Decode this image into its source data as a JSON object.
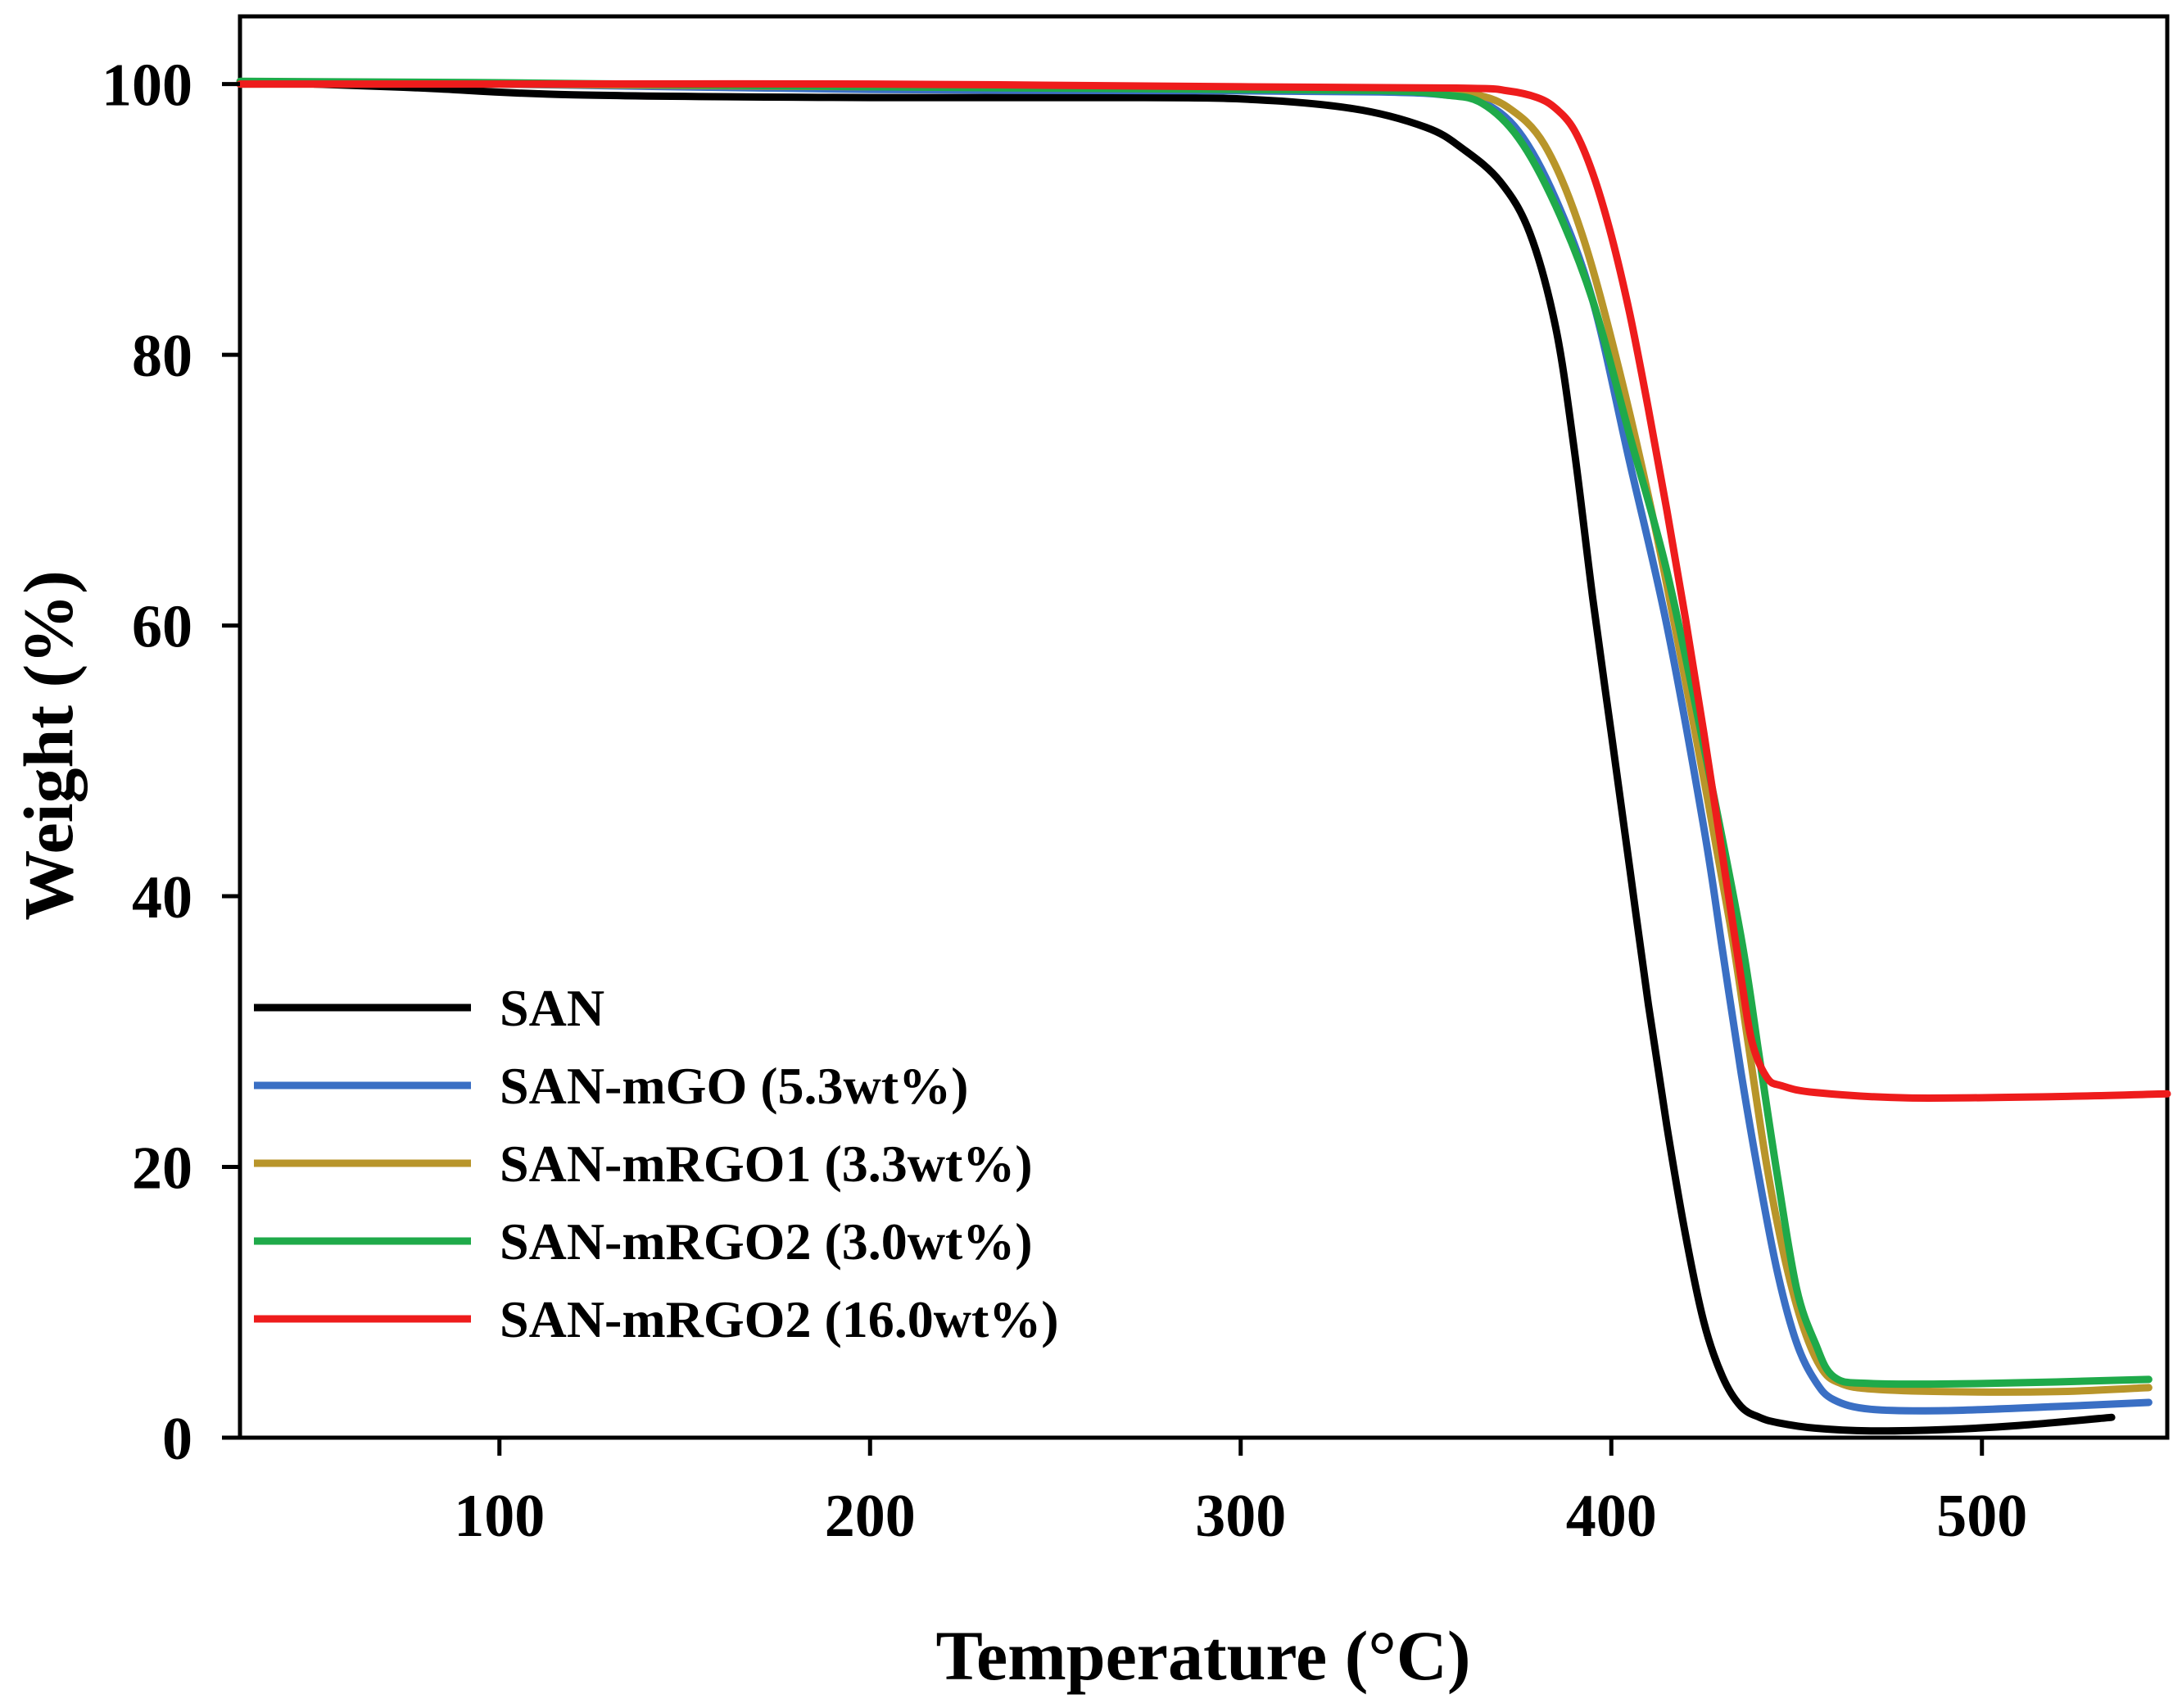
{
  "chart_data": {
    "type": "line",
    "title": "",
    "xlabel": "Temperature (°C)",
    "ylabel": "Weight  (%)",
    "xlim": [
      30,
      550
    ],
    "ylim": [
      0,
      105
    ],
    "xticks": [
      100,
      200,
      300,
      400,
      500
    ],
    "yticks": [
      0,
      20,
      40,
      60,
      80,
      100
    ],
    "grid": false,
    "legend_position": "bottom-left",
    "series": [
      {
        "name": "SAN",
        "color": "#000000",
        "x": [
          50,
          80,
          120,
          200,
          260,
          300,
          330,
          350,
          360,
          370,
          378,
          385,
          390,
          395,
          400,
          405,
          410,
          415,
          420,
          425,
          430,
          435,
          440,
          445,
          455,
          470,
          490,
          510,
          535
        ],
        "y": [
          100,
          99.7,
          99.2,
          99,
          99,
          98.9,
          98.2,
          96.8,
          95.2,
          92.8,
          89,
          82,
          73,
          62,
          52,
          42,
          32,
          23,
          15,
          8.5,
          4.5,
          2.3,
          1.5,
          1.1,
          0.7,
          0.5,
          0.6,
          0.9,
          1.5
        ]
      },
      {
        "name": "SAN-mGO  (5.3wt%)",
        "color": "#3a6fc4",
        "x": [
          30,
          100,
          200,
          300,
          340,
          355,
          365,
          375,
          385,
          395,
          405,
          415,
          425,
          430,
          435,
          440,
          445,
          450,
          455,
          460,
          470,
          490,
          520,
          545
        ],
        "y": [
          100,
          100,
          99.6,
          99.5,
          99.4,
          99.2,
          98.7,
          96.5,
          91.5,
          84,
          72,
          60,
          45,
          36,
          27,
          19,
          12,
          7,
          4.2,
          2.8,
          2.1,
          2.0,
          2.3,
          2.6
        ]
      },
      {
        "name": "SAN-mRGO1  (3.3wt%)",
        "color": "#b8952a",
        "x": [
          30,
          100,
          200,
          300,
          350,
          362,
          372,
          382,
          392,
          402,
          412,
          422,
          432,
          437,
          442,
          447,
          452,
          457,
          462,
          470,
          490,
          520,
          545
        ],
        "y": [
          100,
          100,
          99.8,
          99.7,
          99.6,
          99.3,
          98.3,
          95.5,
          89,
          79,
          67,
          53,
          38,
          29,
          20,
          13,
          8,
          5,
          4,
          3.6,
          3.4,
          3.4,
          3.7
        ]
      },
      {
        "name": "SAN-mRGO2  (3.0wt%)",
        "color": "#1faa4a",
        "x": [
          30,
          100,
          200,
          300,
          340,
          355,
          365,
          375,
          385,
          395,
          405,
          415,
          425,
          435,
          440,
          445,
          450,
          455,
          460,
          470,
          500,
          545
        ],
        "y": [
          100.2,
          100.1,
          99.8,
          99.6,
          99.5,
          99.2,
          98.6,
          96,
          91,
          84,
          74,
          64,
          51,
          37,
          28,
          19,
          11,
          7,
          4.5,
          4.0,
          4.0,
          4.3
        ]
      },
      {
        "name": "SAN-mRGO2  (16.0wt%)",
        "color": "#ee1c1c",
        "x": [
          30,
          100,
          200,
          300,
          360,
          372,
          380,
          385,
          390,
          395,
          400,
          405,
          410,
          415,
          420,
          425,
          430,
          435,
          438,
          442,
          446,
          455,
          480,
          520,
          550
        ],
        "y": [
          100,
          100,
          100,
          99.8,
          99.7,
          99.5,
          99.0,
          98.2,
          96.6,
          93.4,
          88.8,
          83,
          76,
          68.5,
          60.5,
          52,
          43,
          34,
          29.2,
          26.6,
          26,
          25.5,
          25.1,
          25.2,
          25.4
        ]
      }
    ]
  }
}
